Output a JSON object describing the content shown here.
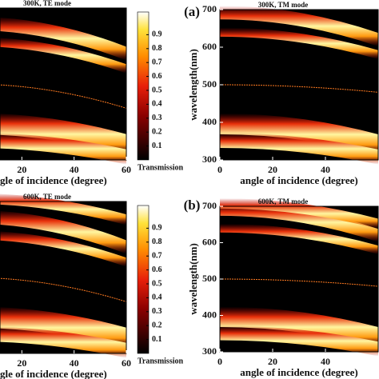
{
  "chart_data": [
    {
      "type": "heatmap",
      "title": "300K, TE mode",
      "panel_label": "(a)",
      "xlabel": "angle of incidence (degree)",
      "xlim": [
        0,
        60
      ],
      "xticks": [
        20,
        40,
        60
      ],
      "colorbar": {
        "label": "Transmission",
        "ticks": [
          0.1,
          0.2,
          0.3,
          0.4,
          0.5,
          0.6,
          0.7,
          0.8,
          0.9
        ]
      }
    },
    {
      "type": "heatmap",
      "title": "300K, TM mode",
      "xlabel": "angle of incidence (degree)",
      "ylabel": "wavelength(nm)",
      "xlim": [
        0,
        60
      ],
      "xticks": [
        0,
        20,
        40
      ],
      "ylim": [
        300,
        700
      ],
      "yticks": [
        300,
        400,
        500,
        600,
        700
      ]
    },
    {
      "type": "heatmap",
      "title": "600K, TE mode",
      "panel_label": "(b)",
      "xlabel": "angle of incidence (degree)",
      "xlim": [
        0,
        60
      ],
      "xticks": [
        20,
        40,
        60
      ],
      "colorbar": {
        "label": "Transmission",
        "ticks": [
          0.1,
          0.2,
          0.3,
          0.4,
          0.5,
          0.6,
          0.7,
          0.8,
          0.9
        ]
      }
    },
    {
      "type": "heatmap",
      "title": "600K, TM mode",
      "xlabel": "angle of incidence (degree)",
      "ylabel": "wavelength(nm)",
      "xlim": [
        0,
        60
      ],
      "xticks": [
        0,
        20,
        40
      ],
      "ylim": [
        300,
        700
      ],
      "yticks": [
        300,
        400,
        500,
        600,
        700
      ]
    }
  ]
}
